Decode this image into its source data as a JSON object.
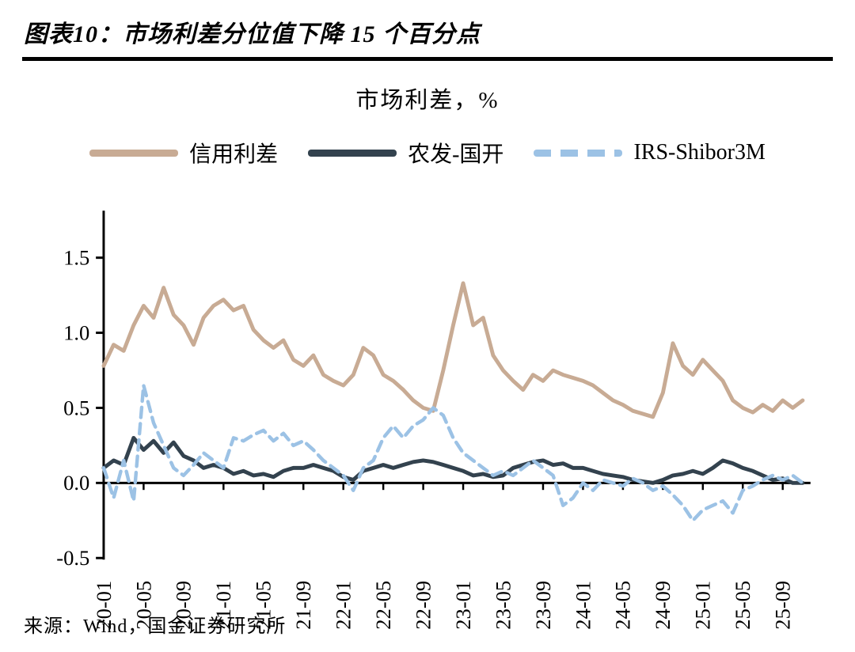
{
  "header": {
    "title": "图表10：市场利差分位值下降 15 个百分点"
  },
  "chart": {
    "title": "市场利差，%"
  },
  "source": "来源：Wind，国金证券研究所",
  "colors": {
    "credit_spread": "#C8AB94",
    "nongfa_guokai": "#33424E",
    "irs_shibor": "#9CC2E5",
    "axis": "#000000"
  },
  "chart_data": {
    "type": "line",
    "title": "市场利差，%",
    "ylabel": "",
    "xlabel": "",
    "ylim": [
      -0.5,
      1.5
    ],
    "yticks": [
      1.5,
      1.0,
      0.5,
      0.0,
      -0.5
    ],
    "grid": false,
    "legend_position": "top",
    "x": [
      "20-01",
      "20-02",
      "20-03",
      "20-04",
      "20-05",
      "20-06",
      "20-07",
      "20-08",
      "20-09",
      "20-10",
      "20-11",
      "20-12",
      "21-01",
      "21-02",
      "21-03",
      "21-04",
      "21-05",
      "21-06",
      "21-07",
      "21-08",
      "21-09",
      "21-10",
      "21-11",
      "21-12",
      "22-01",
      "22-02",
      "22-03",
      "22-04",
      "22-05",
      "22-06",
      "22-07",
      "22-08",
      "22-09",
      "22-10",
      "22-11",
      "22-12",
      "23-01",
      "23-02",
      "23-03",
      "23-04",
      "23-05",
      "23-06",
      "23-07",
      "23-08",
      "23-09",
      "23-10",
      "23-11",
      "23-12",
      "24-01",
      "24-02",
      "24-03",
      "24-04",
      "24-05",
      "24-06",
      "24-07",
      "24-08",
      "24-09",
      "24-10",
      "24-11",
      "24-12",
      "25-01",
      "25-02",
      "25-03",
      "25-04",
      "25-05",
      "25-06",
      "25-07",
      "25-08",
      "25-09",
      "25-10",
      "25-11"
    ],
    "x_tick_labels": [
      "20-01",
      "20-05",
      "20-09",
      "21-01",
      "21-05",
      "21-09",
      "22-01",
      "22-05",
      "22-09",
      "23-01",
      "23-05",
      "23-09",
      "24-01",
      "24-05",
      "24-09",
      "25-01",
      "25-05",
      "25-09"
    ],
    "x_tick_step": 4,
    "series": [
      {
        "name": "信用利差",
        "color": "#C8AB94",
        "dash": false,
        "values": [
          0.78,
          0.92,
          0.88,
          1.05,
          1.18,
          1.1,
          1.3,
          1.12,
          1.05,
          0.92,
          1.1,
          1.18,
          1.22,
          1.15,
          1.18,
          1.02,
          0.95,
          0.9,
          0.95,
          0.82,
          0.78,
          0.85,
          0.72,
          0.68,
          0.65,
          0.72,
          0.9,
          0.85,
          0.72,
          0.68,
          0.62,
          0.55,
          0.5,
          0.48,
          0.75,
          1.05,
          1.33,
          1.05,
          1.1,
          0.85,
          0.75,
          0.68,
          0.62,
          0.72,
          0.68,
          0.75,
          0.72,
          0.7,
          0.68,
          0.65,
          0.6,
          0.55,
          0.52,
          0.48,
          0.46,
          0.44,
          0.6,
          0.93,
          0.78,
          0.72,
          0.82,
          0.75,
          0.68,
          0.55,
          0.5,
          0.47,
          0.52,
          0.48,
          0.55,
          0.5,
          0.55
        ]
      },
      {
        "name": "农发-国开",
        "color": "#33424E",
        "dash": false,
        "values": [
          0.1,
          0.15,
          0.12,
          0.3,
          0.22,
          0.28,
          0.2,
          0.27,
          0.18,
          0.15,
          0.1,
          0.12,
          0.1,
          0.06,
          0.08,
          0.05,
          0.06,
          0.04,
          0.08,
          0.1,
          0.1,
          0.12,
          0.1,
          0.08,
          0.04,
          0.02,
          0.08,
          0.1,
          0.12,
          0.1,
          0.12,
          0.14,
          0.15,
          0.14,
          0.12,
          0.1,
          0.08,
          0.05,
          0.06,
          0.04,
          0.05,
          0.1,
          0.12,
          0.14,
          0.15,
          0.12,
          0.13,
          0.1,
          0.1,
          0.08,
          0.06,
          0.05,
          0.04,
          0.02,
          0.01,
          0.0,
          0.02,
          0.05,
          0.06,
          0.08,
          0.06,
          0.1,
          0.15,
          0.13,
          0.1,
          0.08,
          0.05,
          0.02,
          0.03,
          0.0,
          0.0
        ]
      },
      {
        "name": "IRS-Shibor3M",
        "color": "#9CC2E5",
        "dash": true,
        "values": [
          0.1,
          -0.1,
          0.15,
          -0.12,
          0.65,
          0.4,
          0.25,
          0.1,
          0.05,
          0.12,
          0.2,
          0.15,
          0.1,
          0.3,
          0.28,
          0.32,
          0.35,
          0.28,
          0.33,
          0.25,
          0.28,
          0.22,
          0.15,
          0.1,
          0.05,
          -0.05,
          0.1,
          0.15,
          0.3,
          0.38,
          0.3,
          0.38,
          0.42,
          0.5,
          0.45,
          0.3,
          0.2,
          0.15,
          0.1,
          0.05,
          0.08,
          0.05,
          0.1,
          0.15,
          0.1,
          0.05,
          -0.15,
          -0.1,
          0.0,
          -0.05,
          0.02,
          0.0,
          -0.02,
          0.03,
          0.0,
          -0.05,
          -0.02,
          -0.08,
          -0.15,
          -0.25,
          -0.18,
          -0.15,
          -0.12,
          -0.2,
          -0.05,
          -0.02,
          0.02,
          0.05,
          0.02,
          0.05,
          0.0
        ]
      }
    ]
  }
}
